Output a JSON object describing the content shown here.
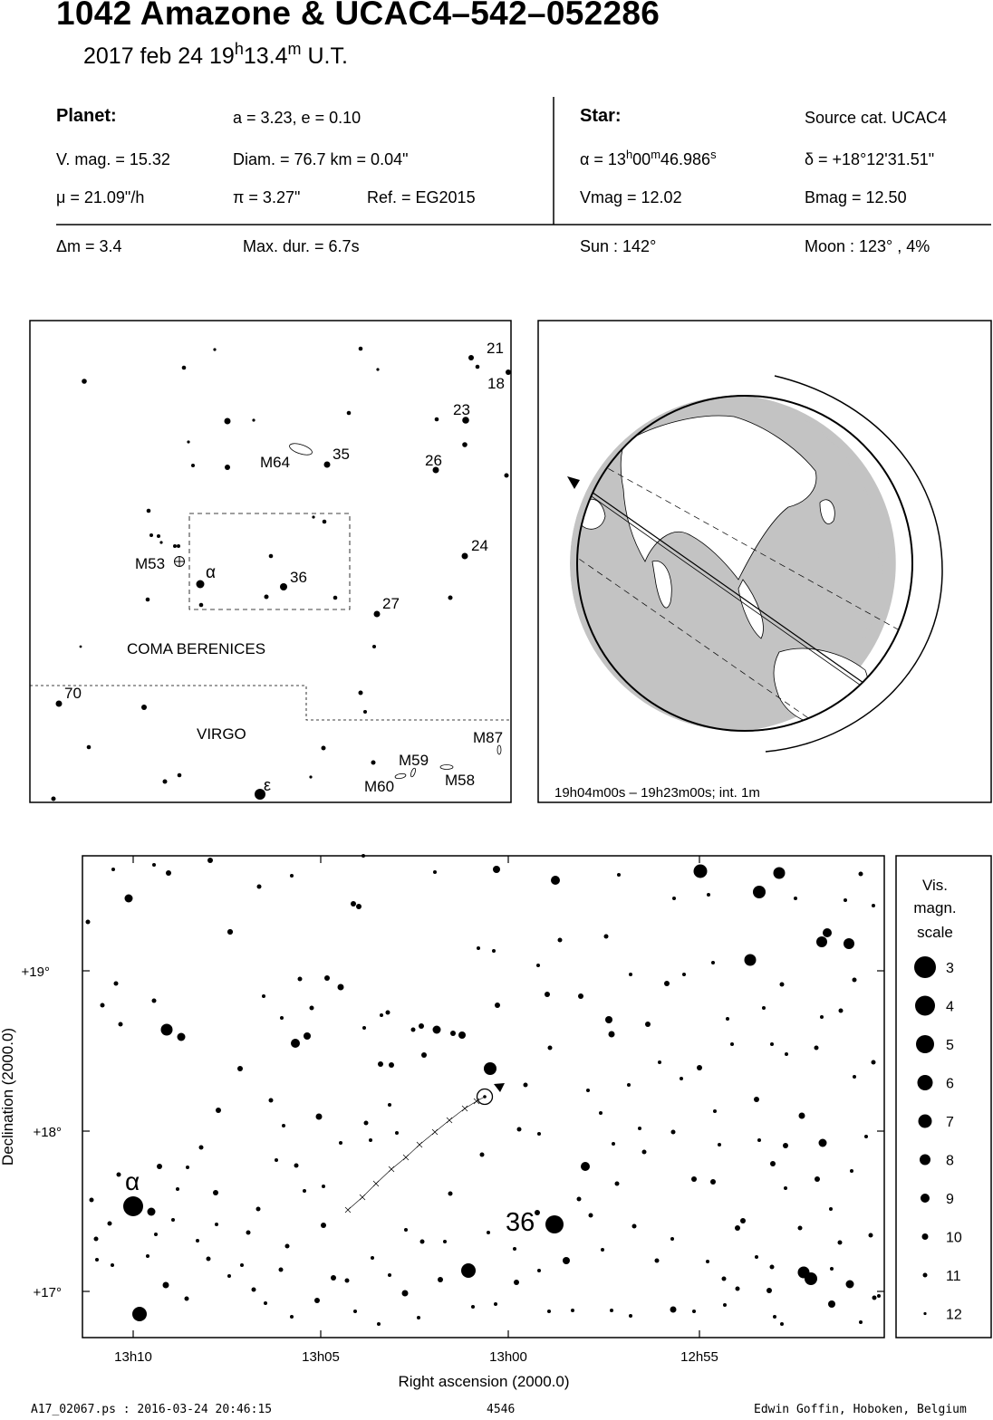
{
  "header": {
    "title": "1042 Amazone  &  UCAC4–542–052286",
    "date": "2017 feb 24  19",
    "hour_unit": "h",
    "minutes": "13.4",
    "minute_unit": "m",
    "time_suffix": " U.T."
  },
  "planet": {
    "label": "Planet:",
    "orbit": "a = 3.23, e = 0.10",
    "vmag": "V. mag. = 15.32",
    "diam": "Diam. = 76.7 km = 0.04\"",
    "mu": "μ =  21.09\"/h",
    "pi": "π =  3.27\"",
    "ref": "Ref. = EG2015",
    "dm": "Δm = 3.4",
    "maxdur": "Max. dur. = 6.7s"
  },
  "star": {
    "label": "Star:",
    "source": "Source cat.  UCAC4",
    "alpha_prefix": "α = 13",
    "alpha_h": "h",
    "alpha_min": "00",
    "alpha_m": "m",
    "alpha_sec": "46.986",
    "alpha_s": "s",
    "delta": "δ = +18°12'31.51\"",
    "vmag": "Vmag = 12.02",
    "bmag": "Bmag = 12.50",
    "sun": "Sun : 142°",
    "moon": "Moon : 123° ,  4%"
  },
  "finder_chart": {
    "star_labels": [
      "21",
      "18",
      "23",
      "26",
      "35",
      "24",
      "36",
      "27",
      "70"
    ],
    "greek_labels": [
      "α",
      "ε"
    ],
    "objects": [
      "M64",
      "M53",
      "M87",
      "M59",
      "M58",
      "M60"
    ],
    "constellations": [
      "COMA BERENICES",
      "VIRGO"
    ]
  },
  "globe": {
    "caption": "19h04m00s – 19h23m00s; int.  1m"
  },
  "star_chart": {
    "dec_labels": [
      "+19°",
      "+18°",
      "+17°"
    ],
    "ra_labels": [
      "13h10",
      "13h05",
      "13h00",
      "12h55"
    ],
    "xlabel": "Right ascension (2000.0)",
    "ylabel": "Declination (2000.0)",
    "alpha_label": "α",
    "star36_label": "36"
  },
  "scale": {
    "title": [
      "Vis.",
      "magn.",
      "scale"
    ],
    "mags": [
      "3",
      "4",
      "5",
      "6",
      "7",
      "8",
      "9",
      "10",
      "11",
      "12"
    ]
  },
  "footer": {
    "left": "A17_02067.ps : 2016-03-24 20:46:15",
    "center": "4546",
    "right": "Edwin Goffin, Hoboken, Belgium"
  }
}
